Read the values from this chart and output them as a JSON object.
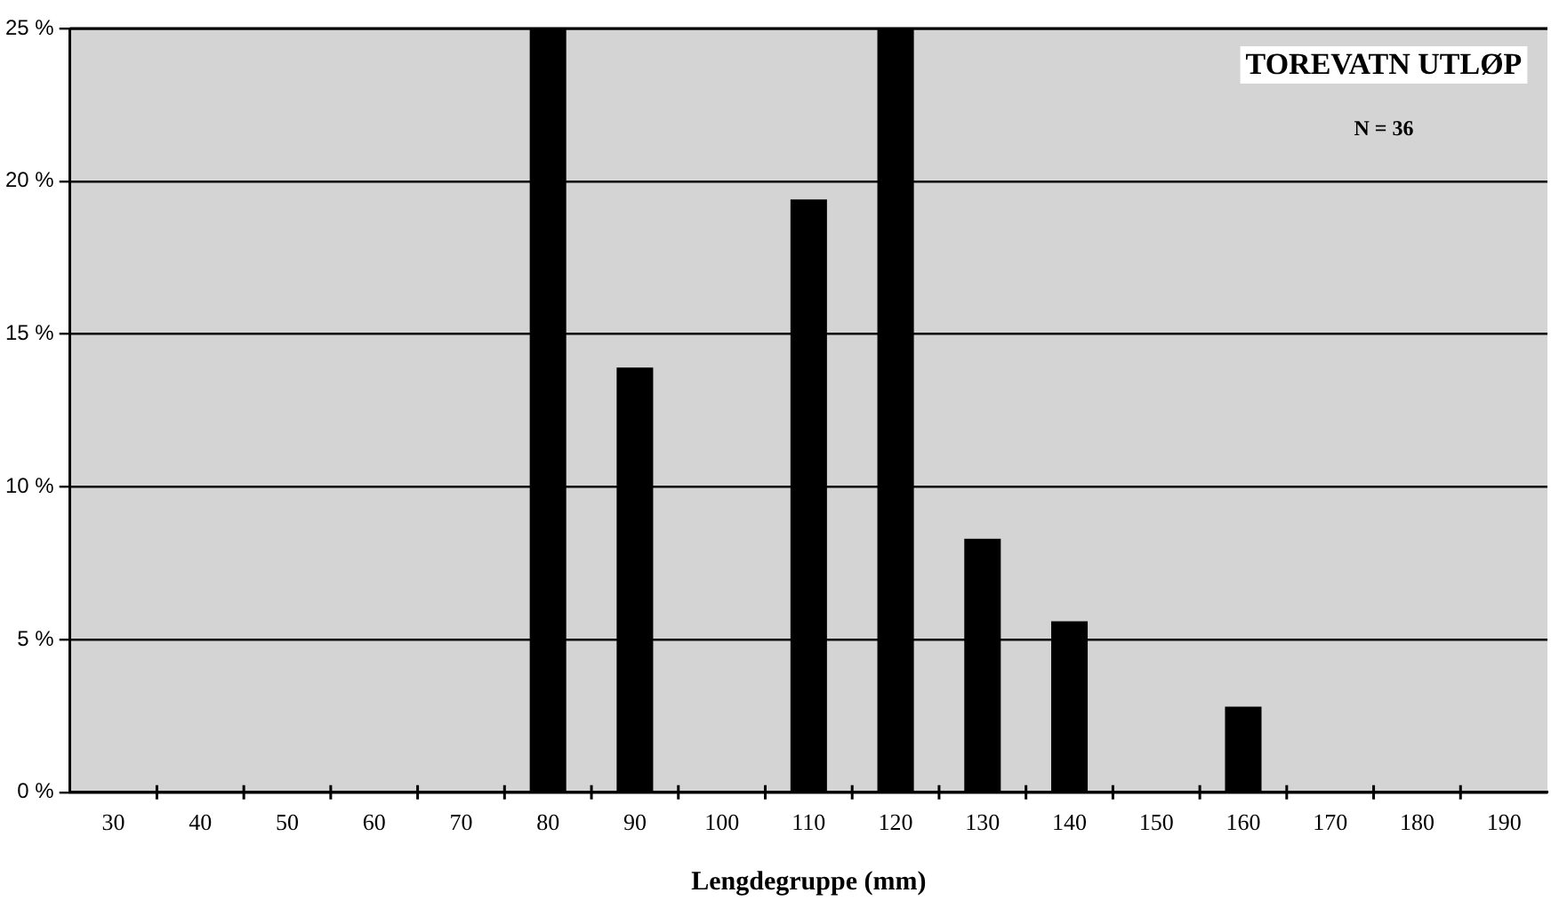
{
  "chart_data": {
    "type": "bar",
    "title": "TOREVATN UTLØP",
    "annotations": [
      "N = 36"
    ],
    "xlabel": "Lengdegruppe (mm)",
    "categories": [
      "30",
      "40",
      "50",
      "60",
      "70",
      "80",
      "90",
      "100",
      "110",
      "120",
      "130",
      "140",
      "150",
      "160",
      "170",
      "180",
      "190"
    ],
    "values": [
      0,
      0,
      0,
      0,
      0,
      25,
      13.9,
      0,
      19.4,
      25,
      8.3,
      5.6,
      0,
      2.8,
      0,
      0,
      0
    ],
    "color": "#000000",
    "ylim": [
      0,
      25
    ],
    "yticks": [
      {
        "value": 0,
        "label": "0 %"
      },
      {
        "value": 5,
        "label": "5 %"
      },
      {
        "value": 10,
        "label": "10 %"
      },
      {
        "value": 15,
        "label": "15 %"
      },
      {
        "value": 20,
        "label": "20 %"
      },
      {
        "value": 25,
        "label": "25 %"
      }
    ],
    "grid": "y"
  }
}
